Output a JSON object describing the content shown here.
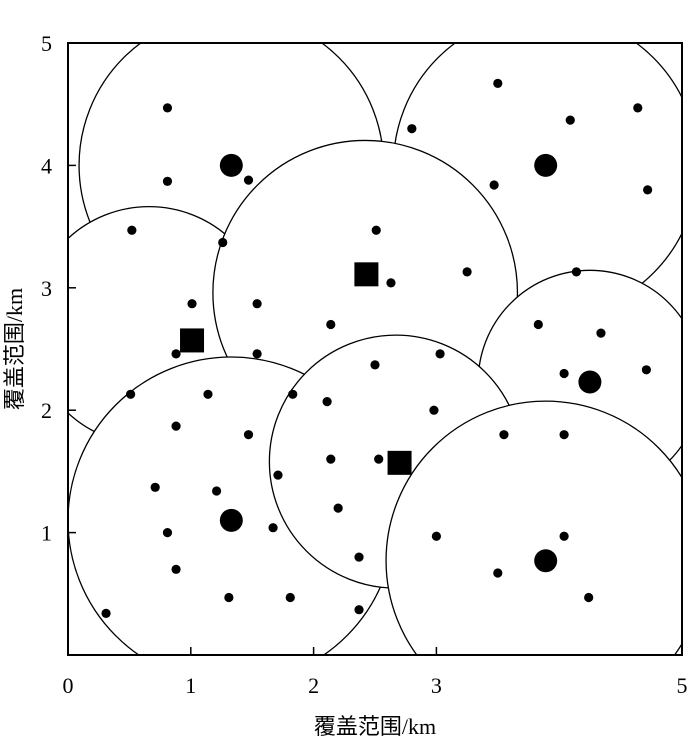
{
  "chart_data": {
    "type": "scatter",
    "xlabel": "覆盖范围/km",
    "ylabel": "覆盖范围/km",
    "xlim": [
      0,
      5
    ],
    "ylim": [
      0,
      5
    ],
    "x_ticks": [
      "0",
      "1",
      "2",
      "3",
      "5"
    ],
    "x_tick_values": [
      0,
      1,
      2,
      3,
      5
    ],
    "y_ticks": [
      "1",
      "2",
      "3",
      "4",
      "5"
    ],
    "y_tick_values": [
      1,
      2,
      3,
      4,
      5
    ],
    "grid": false,
    "coverage_circles": [
      {
        "cx": 1.33,
        "cy": 4.0,
        "r": 1.24
      },
      {
        "cx": 3.89,
        "cy": 4.0,
        "r": 1.24
      },
      {
        "cx": 0.66,
        "cy": 2.69,
        "r": 0.97
      },
      {
        "cx": 2.42,
        "cy": 2.96,
        "r": 1.24
      },
      {
        "cx": 4.25,
        "cy": 2.23,
        "r": 0.91
      },
      {
        "cx": 1.33,
        "cy": 1.1,
        "r": 1.33
      },
      {
        "cx": 2.67,
        "cy": 1.58,
        "r": 1.03
      },
      {
        "cx": 3.89,
        "cy": 0.77,
        "r": 1.3
      }
    ],
    "base_stations": [
      {
        "x": 1.33,
        "y": 4.0
      },
      {
        "x": 3.89,
        "y": 4.0
      },
      {
        "x": 4.25,
        "y": 2.23
      },
      {
        "x": 1.33,
        "y": 1.1
      },
      {
        "x": 3.89,
        "y": 0.77
      }
    ],
    "square_markers": [
      {
        "x": 2.43,
        "y": 3.11
      },
      {
        "x": 1.01,
        "y": 2.57
      },
      {
        "x": 2.7,
        "y": 1.57
      }
    ],
    "users": [
      {
        "x": 0.81,
        "y": 4.47
      },
      {
        "x": 0.81,
        "y": 3.87
      },
      {
        "x": 1.47,
        "y": 3.88
      },
      {
        "x": 0.52,
        "y": 3.47
      },
      {
        "x": 1.26,
        "y": 3.37
      },
      {
        "x": 3.5,
        "y": 4.67
      },
      {
        "x": 4.09,
        "y": 4.37
      },
      {
        "x": 4.64,
        "y": 4.47
      },
      {
        "x": 2.8,
        "y": 4.3
      },
      {
        "x": 3.47,
        "y": 3.84
      },
      {
        "x": 4.72,
        "y": 3.8
      },
      {
        "x": 2.51,
        "y": 3.47
      },
      {
        "x": 2.63,
        "y": 3.04
      },
      {
        "x": 3.25,
        "y": 3.13
      },
      {
        "x": 4.14,
        "y": 3.13
      },
      {
        "x": 1.01,
        "y": 2.87
      },
      {
        "x": 1.54,
        "y": 2.87
      },
      {
        "x": 2.14,
        "y": 2.7
      },
      {
        "x": 0.88,
        "y": 2.46
      },
      {
        "x": 1.54,
        "y": 2.46
      },
      {
        "x": 3.03,
        "y": 2.46
      },
      {
        "x": 3.83,
        "y": 2.7
      },
      {
        "x": 4.34,
        "y": 2.63
      },
      {
        "x": 4.04,
        "y": 2.3
      },
      {
        "x": 4.71,
        "y": 2.33
      },
      {
        "x": 2.5,
        "y": 2.37
      },
      {
        "x": 0.51,
        "y": 2.13
      },
      {
        "x": 1.14,
        "y": 2.13
      },
      {
        "x": 1.83,
        "y": 2.13
      },
      {
        "x": 2.11,
        "y": 2.07
      },
      {
        "x": 2.98,
        "y": 2.0
      },
      {
        "x": 3.55,
        "y": 1.8
      },
      {
        "x": 4.04,
        "y": 1.8
      },
      {
        "x": 0.88,
        "y": 1.87
      },
      {
        "x": 1.47,
        "y": 1.8
      },
      {
        "x": 2.14,
        "y": 1.6
      },
      {
        "x": 2.53,
        "y": 1.6
      },
      {
        "x": 1.71,
        "y": 1.47
      },
      {
        "x": 0.71,
        "y": 1.37
      },
      {
        "x": 1.21,
        "y": 1.34
      },
      {
        "x": 2.2,
        "y": 1.2
      },
      {
        "x": 0.81,
        "y": 1.0
      },
      {
        "x": 1.67,
        "y": 1.04
      },
      {
        "x": 3.0,
        "y": 0.97
      },
      {
        "x": 4.04,
        "y": 0.97
      },
      {
        "x": 2.37,
        "y": 0.8
      },
      {
        "x": 0.88,
        "y": 0.7
      },
      {
        "x": 3.5,
        "y": 0.67
      },
      {
        "x": 1.31,
        "y": 0.47
      },
      {
        "x": 1.81,
        "y": 0.47
      },
      {
        "x": 4.24,
        "y": 0.47
      },
      {
        "x": 2.37,
        "y": 0.37
      },
      {
        "x": 0.31,
        "y": 0.34
      }
    ]
  }
}
